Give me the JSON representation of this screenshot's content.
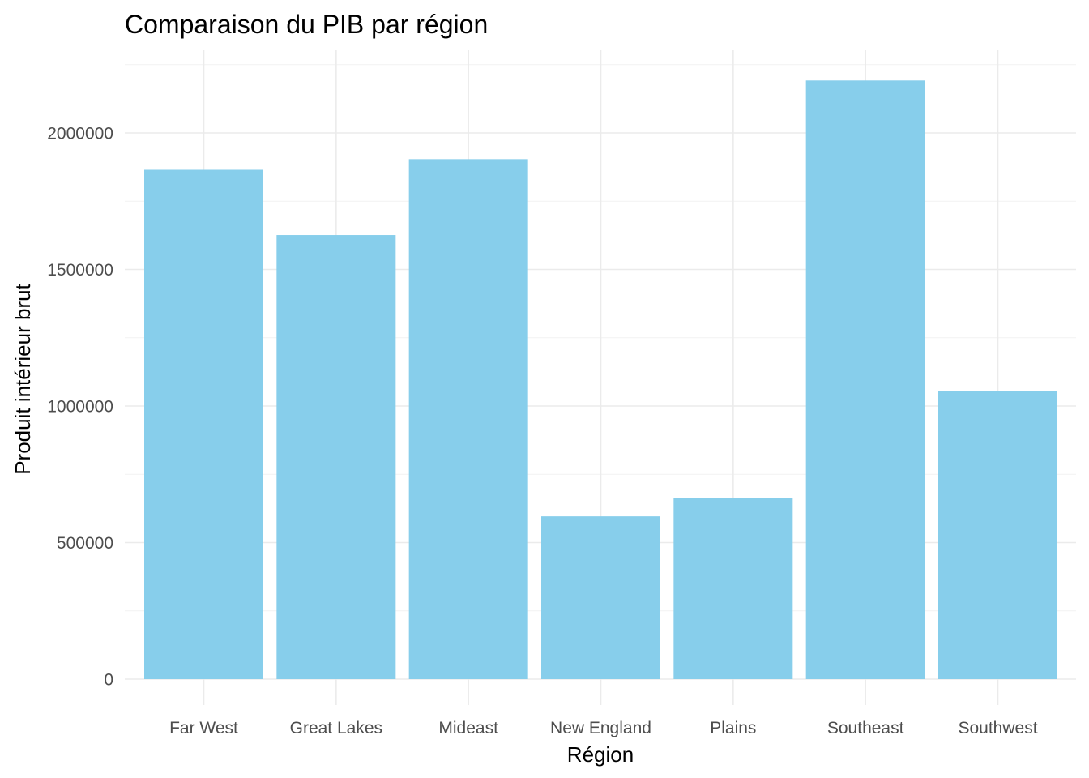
{
  "chart_data": {
    "type": "bar",
    "title": "Comparaison du PIB par région",
    "xlabel": "Région",
    "ylabel": "Produit intérieur brut",
    "categories": [
      "Far West",
      "Great Lakes",
      "Mideast",
      "New England",
      "Plains",
      "Southeast",
      "Southwest"
    ],
    "values": [
      1865000,
      1626000,
      1904000,
      596000,
      662000,
      2192000,
      1055000
    ],
    "ylim": [
      0,
      2250000
    ],
    "yticks": [
      0,
      500000,
      1000000,
      1500000,
      2000000
    ],
    "ytick_labels": [
      "0",
      "500000",
      "1000000",
      "1500000",
      "2000000"
    ],
    "grid": true,
    "legend": "none",
    "bar_color": "#87CEEB"
  }
}
